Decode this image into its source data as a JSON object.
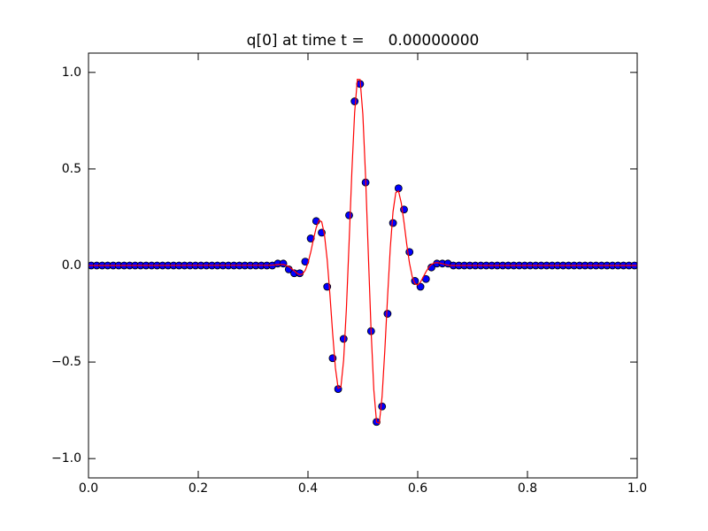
{
  "chart_data": {
    "type": "line",
    "title": "q[0] at time t =     0.00000000",
    "xlim": [
      0,
      1
    ],
    "ylim": [
      -1.1,
      1.1
    ],
    "xticks": [
      {
        "value": 0,
        "label": "0.0"
      },
      {
        "value": 0.2,
        "label": "0.2"
      },
      {
        "value": 0.4,
        "label": "0.4"
      },
      {
        "value": 0.6,
        "label": "0.6"
      },
      {
        "value": 0.8,
        "label": "0.8"
      },
      {
        "value": 1,
        "label": "1.0"
      }
    ],
    "yticks": [
      {
        "value": -1,
        "label": "−1.0"
      },
      {
        "value": -0.5,
        "label": "−0.5"
      },
      {
        "value": 0,
        "label": "0.0"
      },
      {
        "value": 0.5,
        "label": "0.5"
      },
      {
        "value": 1,
        "label": "1.0"
      }
    ],
    "grid": false,
    "series": [
      {
        "mode": "markers",
        "color": "#0000ff",
        "edgecolor": "#000000",
        "x": [
          0.005,
          0.015,
          0.025,
          0.035,
          0.045,
          0.055,
          0.065,
          0.075,
          0.085,
          0.095,
          0.105,
          0.115,
          0.125,
          0.135,
          0.145,
          0.155,
          0.165,
          0.175,
          0.185,
          0.195,
          0.205,
          0.215,
          0.225,
          0.235,
          0.245,
          0.255,
          0.265,
          0.275,
          0.285,
          0.295,
          0.305,
          0.315,
          0.325,
          0.335,
          0.345,
          0.355,
          0.365,
          0.375,
          0.385,
          0.395,
          0.405,
          0.415,
          0.425,
          0.435,
          0.445,
          0.455,
          0.465,
          0.475,
          0.485,
          0.495,
          0.505,
          0.515,
          0.525,
          0.535,
          0.545,
          0.555,
          0.565,
          0.575,
          0.585,
          0.595,
          0.605,
          0.615,
          0.625,
          0.635,
          0.645,
          0.655,
          0.665,
          0.675,
          0.685,
          0.695,
          0.705,
          0.715,
          0.725,
          0.735,
          0.745,
          0.755,
          0.765,
          0.775,
          0.785,
          0.795,
          0.805,
          0.815,
          0.825,
          0.835,
          0.845,
          0.855,
          0.865,
          0.875,
          0.885,
          0.895,
          0.905,
          0.915,
          0.925,
          0.935,
          0.945,
          0.955,
          0.965,
          0.975,
          0.985,
          0.995
        ],
        "values": [
          0,
          0,
          0,
          0,
          0,
          0,
          0,
          0,
          0,
          0,
          0,
          0,
          0,
          0,
          0,
          0,
          0,
          0,
          0,
          0,
          0,
          0,
          0,
          0,
          0,
          0,
          0,
          0,
          0,
          0,
          0,
          0,
          0,
          0,
          0.01,
          0.01,
          -0.02,
          -0.04,
          -0.04,
          0.02,
          0.14,
          0.23,
          0.17,
          -0.11,
          -0.48,
          -0.64,
          -0.38,
          0.26,
          0.85,
          0.94,
          0.43,
          -0.34,
          -0.81,
          -0.73,
          -0.25,
          0.22,
          0.4,
          0.29,
          0.07,
          -0.08,
          -0.11,
          -0.07,
          -0.01,
          0.01,
          0.01,
          0.01,
          0,
          0,
          0,
          0,
          0,
          0,
          0,
          0,
          0,
          0,
          0,
          0,
          0,
          0,
          0,
          0,
          0,
          0,
          0,
          0,
          0,
          0,
          0,
          0,
          0,
          0,
          0,
          0,
          0,
          0,
          0,
          0,
          0,
          0
        ]
      },
      {
        "mode": "line",
        "color": "#ff0000",
        "x": [
          0,
          0.33,
          0.335,
          0.34,
          0.345,
          0.35,
          0.355,
          0.36,
          0.365,
          0.37,
          0.375,
          0.38,
          0.385,
          0.39,
          0.395,
          0.4,
          0.405,
          0.41,
          0.415,
          0.42,
          0.425,
          0.43,
          0.435,
          0.44,
          0.445,
          0.45,
          0.455,
          0.46,
          0.465,
          0.47,
          0.475,
          0.48,
          0.485,
          0.49,
          0.495,
          0.5,
          0.505,
          0.51,
          0.515,
          0.52,
          0.525,
          0.53,
          0.535,
          0.54,
          0.545,
          0.55,
          0.555,
          0.56,
          0.565,
          0.57,
          0.575,
          0.58,
          0.585,
          0.59,
          0.595,
          0.6,
          0.605,
          0.61,
          0.615,
          0.62,
          0.625,
          0.63,
          0.635,
          0.64,
          0.645,
          0.65,
          0.655,
          0.66,
          1
        ],
        "values": [
          0,
          0.001,
          0.002,
          0.003,
          0.005,
          0.005,
          0.005,
          0.001,
          -0.006,
          -0.016,
          -0.028,
          -0.04,
          -0.048,
          -0.044,
          -0.025,
          0.013,
          0.069,
          0.136,
          0.196,
          0.234,
          0.227,
          0.16,
          0.03,
          -0.151,
          -0.353,
          -0.531,
          -0.636,
          -0.629,
          -0.489,
          -0.224,
          0.124,
          0.488,
          0.791,
          0.964,
          0.963,
          0.783,
          0.458,
          0.058,
          -0.336,
          -0.644,
          -0.811,
          -0.817,
          -0.68,
          -0.442,
          -0.165,
          0.091,
          0.279,
          0.377,
          0.386,
          0.324,
          0.224,
          0.11,
          0.012,
          -0.058,
          -0.094,
          -0.101,
          -0.086,
          -0.06,
          -0.033,
          -0.01,
          0.005,
          0.013,
          0.015,
          0.013,
          0.009,
          0.005,
          0.002,
          0,
          0
        ]
      }
    ]
  }
}
